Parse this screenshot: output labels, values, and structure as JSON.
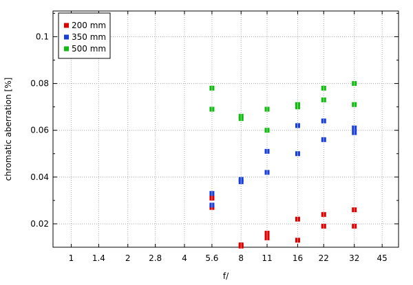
{
  "chart_data": {
    "type": "scatter",
    "title": "",
    "xlabel": "f/",
    "ylabel": "chromatic  aberration [%]",
    "x_scale": "log2",
    "x_ticks": [
      1,
      1.4,
      2,
      2.8,
      4,
      5.6,
      8,
      11,
      16,
      22,
      32,
      45
    ],
    "x_tick_labels": [
      "1",
      "1.4",
      "2",
      "2.8",
      "4",
      "5.6",
      "8",
      "11",
      "16",
      "22",
      "32",
      "45"
    ],
    "xlim": [
      0.8,
      55
    ],
    "ylim": [
      0.01,
      0.111
    ],
    "y_ticks": [
      0.02,
      0.04,
      0.06,
      0.08,
      0.1
    ],
    "y_tick_labels": [
      "0.02",
      "0.04",
      "0.06",
      "0.08",
      "0.1"
    ],
    "grid": true,
    "legend_position": "top-left",
    "series": [
      {
        "name": "200 mm",
        "color": "#dd0000",
        "points": [
          [
            5.6,
            0.031
          ],
          [
            5.6,
            0.027
          ],
          [
            8,
            0.011
          ],
          [
            8,
            0.0105
          ],
          [
            11,
            0.016
          ],
          [
            11,
            0.014
          ],
          [
            16,
            0.022
          ],
          [
            16,
            0.013
          ],
          [
            22,
            0.024
          ],
          [
            22,
            0.019
          ],
          [
            32,
            0.026
          ],
          [
            32,
            0.019
          ]
        ]
      },
      {
        "name": "350 mm",
        "color": "#1a3fd6",
        "points": [
          [
            5.6,
            0.033
          ],
          [
            5.6,
            0.028
          ],
          [
            8,
            0.039
          ],
          [
            8,
            0.038
          ],
          [
            11,
            0.051
          ],
          [
            11,
            0.042
          ],
          [
            16,
            0.062
          ],
          [
            16,
            0.05
          ],
          [
            22,
            0.064
          ],
          [
            22,
            0.056
          ],
          [
            32,
            0.061
          ],
          [
            32,
            0.059
          ]
        ]
      },
      {
        "name": "500 mm",
        "color": "#11bb11",
        "points": [
          [
            5.6,
            0.078
          ],
          [
            5.6,
            0.069
          ],
          [
            8,
            0.066
          ],
          [
            8,
            0.065
          ],
          [
            11,
            0.069
          ],
          [
            11,
            0.06
          ],
          [
            16,
            0.071
          ],
          [
            16,
            0.07
          ],
          [
            22,
            0.078
          ],
          [
            22,
            0.073
          ],
          [
            32,
            0.08
          ],
          [
            32,
            0.071
          ]
        ]
      }
    ]
  }
}
